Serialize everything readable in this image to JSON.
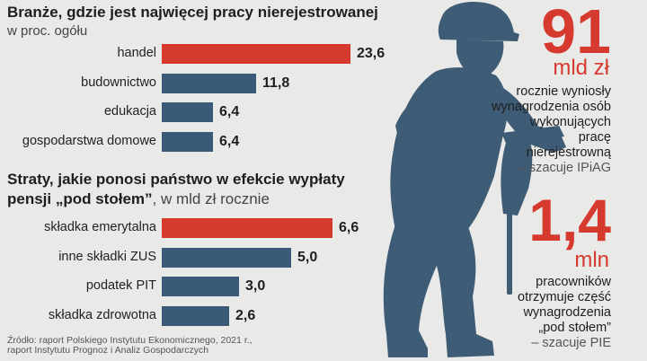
{
  "colors": {
    "highlight": "#d63a2f",
    "bar": "#3a5a78",
    "silhouette": "#3f5c76"
  },
  "section1": {
    "title": "Branże, gdzie jest najwięcej pracy nierejestrowanej",
    "subtitle": "w proc. ogółu"
  },
  "section2": {
    "title_line1": "Straty, jakie ponosi państwo w efekcie wypłaty",
    "title_line2_bold": "pensji „pod stołem”",
    "title_line2_plain": ", w mld zł rocznie"
  },
  "chart_data": [
    {
      "type": "bar",
      "orientation": "horizontal",
      "title": "Branże, gdzie jest najwięcej pracy nierejestrowanej",
      "subtitle": "w proc. ogółu",
      "categories": [
        "handel",
        "budownictwo",
        "edukacja",
        "gospodarstwa domowe"
      ],
      "values": [
        23.6,
        11.8,
        6.4,
        6.4
      ],
      "value_labels": [
        "23,6",
        "11,8",
        "6,4",
        "6,4"
      ],
      "highlight_index": 0
    },
    {
      "type": "bar",
      "orientation": "horizontal",
      "title": "Straty, jakie ponosi państwo w efekcie wypłaty pensji „pod stołem”, w mld zł rocznie",
      "categories": [
        "składka emerytalna",
        "inne składki ZUS",
        "podatek PIT",
        "składka zdrowotna"
      ],
      "values": [
        6.6,
        5.0,
        3.0,
        2.6
      ],
      "value_labels": [
        "6,6",
        "5,0",
        "3,0",
        "2,6"
      ],
      "highlight_index": 0
    }
  ],
  "stat1": {
    "number": "91",
    "unit": "mld zł",
    "lines": [
      "rocznie wyniosły",
      "wynagrodzenia osób",
      "wykonujących",
      "pracę",
      "nierejestrowną"
    ],
    "source": "– szacuje IPiAG"
  },
  "stat2": {
    "number": "1,4",
    "unit": "mln",
    "lines": [
      "pracowników",
      "otrzymuje część",
      "wynagrodzenia",
      "„pod stołem”"
    ],
    "source": "– szacuje PIE"
  },
  "source": {
    "line1": "Źródło: raport Polskiego Instytutu Ekonomicznego, 2021 r.,",
    "line2": "raport Instytutu Prognoz i Analiz Gospodarczych"
  }
}
